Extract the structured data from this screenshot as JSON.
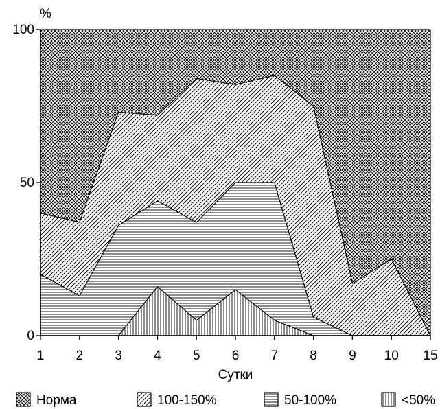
{
  "chart_data": {
    "type": "area",
    "ylabel": "%",
    "xlabel": "Сутки",
    "categories": [
      "1",
      "2",
      "3",
      "4",
      "5",
      "6",
      "7",
      "8",
      "9",
      "10",
      "15"
    ],
    "ylim": [
      0,
      100
    ],
    "yticks": [
      "0",
      "50",
      "100"
    ],
    "stacked": true,
    "series": [
      {
        "name": "<50%",
        "pattern": "vertical",
        "values": [
          0,
          0,
          0,
          16,
          5,
          15,
          5,
          0,
          0,
          0,
          0
        ]
      },
      {
        "name": "50-100%",
        "pattern": "horizontal",
        "values": [
          20,
          13,
          36,
          44,
          37,
          50,
          50,
          6,
          0,
          0,
          0
        ]
      },
      {
        "name": "100-150%",
        "pattern": "diagonal",
        "values": [
          40,
          37,
          73,
          72,
          84,
          82,
          85,
          75,
          17,
          25,
          0
        ]
      },
      {
        "name": "Норма",
        "pattern": "crosshatch",
        "values": [
          100,
          100,
          100,
          100,
          100,
          100,
          100,
          100,
          100,
          100,
          100
        ]
      }
    ],
    "legend_position": "bottom",
    "legend": [
      "Норма",
      "100-150%",
      "50-100%",
      "<50%"
    ]
  }
}
